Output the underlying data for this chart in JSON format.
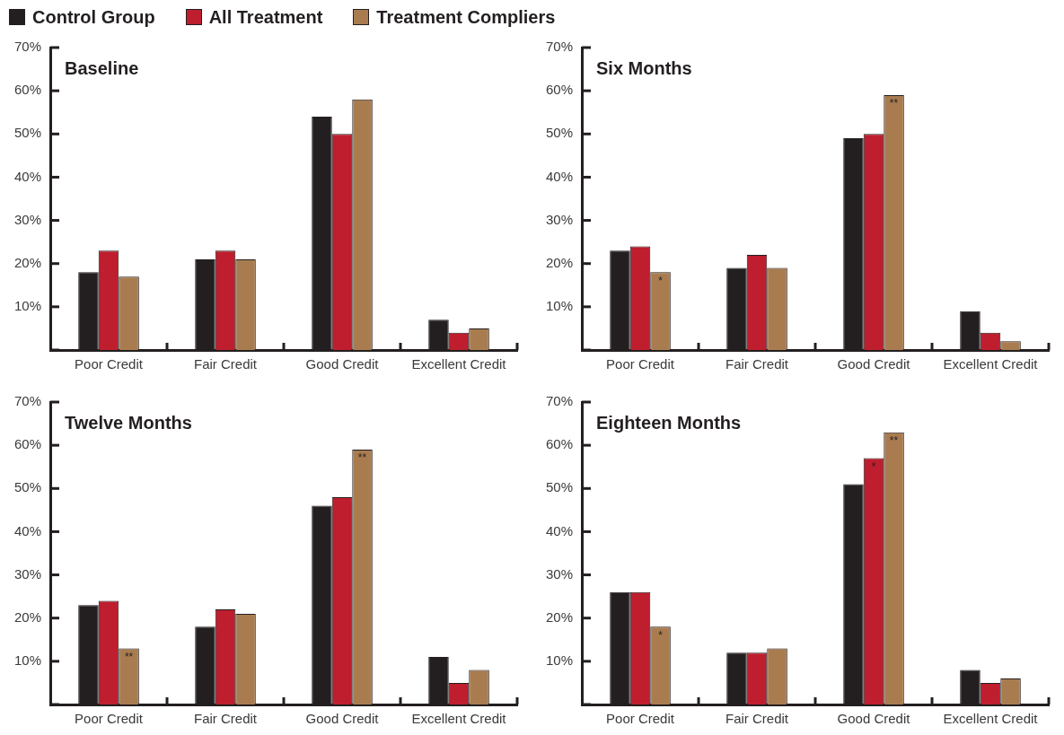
{
  "chart_data": [
    {
      "type": "bar",
      "title": "Baseline",
      "legend": "top",
      "categories": [
        "Poor Credit",
        "Fair Credit",
        "Good Credit",
        "Excellent Credit"
      ],
      "ylim": [
        0,
        70
      ],
      "yticks": [
        {
          "value": 0,
          "label": null
        },
        {
          "value": 10,
          "label": "10%"
        },
        {
          "value": 20,
          "label": "20%"
        },
        {
          "value": 30,
          "label": "30%"
        },
        {
          "value": 40,
          "label": "40%"
        },
        {
          "value": 50,
          "label": "50%"
        },
        {
          "value": 60,
          "label": "60%"
        },
        {
          "value": 70,
          "label": "70%"
        }
      ],
      "grid": false,
      "series": [
        {
          "name": "Control Group",
          "color": "#231f20",
          "values": [
            18,
            21,
            54,
            7
          ]
        },
        {
          "name": "All Treatment",
          "color": "#be1e2d",
          "values": [
            23,
            23,
            50,
            4
          ]
        },
        {
          "name": "Treatment Compliers",
          "color": "#a97c50",
          "values": [
            17,
            21,
            58,
            5
          ]
        }
      ]
    },
    {
      "type": "bar",
      "title": "Six Months",
      "categories": [
        "Poor Credit",
        "Fair Credit",
        "Good Credit",
        "Excellent Credit"
      ],
      "ylim": [
        0,
        70
      ],
      "yticks": [
        {
          "value": 0,
          "label": null
        },
        {
          "value": 10,
          "label": "10%"
        },
        {
          "value": 20,
          "label": "20%"
        },
        {
          "value": 30,
          "label": "30%"
        },
        {
          "value": 40,
          "label": "40%"
        },
        {
          "value": 50,
          "label": "50%"
        },
        {
          "value": 60,
          "label": "60%"
        },
        {
          "value": 70,
          "label": "70%"
        }
      ],
      "grid": false,
      "series": [
        {
          "color": "#231f20",
          "values": [
            23,
            19,
            49,
            9
          ]
        },
        {
          "color": "#be1e2d",
          "values": [
            24,
            22,
            50,
            4
          ]
        },
        {
          "color": "#a97c50",
          "values": [
            18,
            19,
            59,
            2
          ],
          "value_labels": [
            "*",
            null,
            "**",
            null
          ]
        }
      ]
    },
    {
      "type": "bar",
      "title": "Twelve Months",
      "categories": [
        "Poor Credit",
        "Fair Credit",
        "Good Credit",
        "Excellent Credit"
      ],
      "ylim": [
        0,
        70
      ],
      "yticks": [
        {
          "value": 0,
          "label": null
        },
        {
          "value": 10,
          "label": "10%"
        },
        {
          "value": 20,
          "label": "20%"
        },
        {
          "value": 30,
          "label": "30%"
        },
        {
          "value": 40,
          "label": "40%"
        },
        {
          "value": 50,
          "label": "50%"
        },
        {
          "value": 60,
          "label": "60%"
        },
        {
          "value": 70,
          "label": "70%"
        }
      ],
      "grid": false,
      "series": [
        {
          "color": "#231f20",
          "values": [
            23,
            18,
            46,
            11
          ]
        },
        {
          "color": "#be1e2d",
          "values": [
            24,
            22,
            48,
            5
          ]
        },
        {
          "color": "#a97c50",
          "values": [
            13,
            21,
            59,
            8
          ],
          "value_labels": [
            "**",
            null,
            "**",
            null
          ]
        }
      ]
    },
    {
      "type": "bar",
      "title": "Eighteen Months",
      "categories": [
        "Poor Credit",
        "Fair Credit",
        "Good Credit",
        "Excellent Credit"
      ],
      "ylim": [
        0,
        70
      ],
      "yticks": [
        {
          "value": 0,
          "label": null
        },
        {
          "value": 10,
          "label": "10%"
        },
        {
          "value": 20,
          "label": "20%"
        },
        {
          "value": 30,
          "label": "30%"
        },
        {
          "value": 40,
          "label": "40%"
        },
        {
          "value": 50,
          "label": "50%"
        },
        {
          "value": 60,
          "label": "60%"
        },
        {
          "value": 70,
          "label": "70%"
        }
      ],
      "grid": false,
      "series": [
        {
          "color": "#231f20",
          "values": [
            26,
            12,
            51,
            8
          ]
        },
        {
          "color": "#be1e2d",
          "values": [
            26,
            12,
            57,
            5
          ],
          "value_labels": [
            null,
            null,
            "*",
            null
          ]
        },
        {
          "color": "#a97c50",
          "values": [
            18,
            13,
            63,
            6
          ],
          "value_labels": [
            "*",
            null,
            "**",
            null
          ]
        }
      ]
    }
  ]
}
